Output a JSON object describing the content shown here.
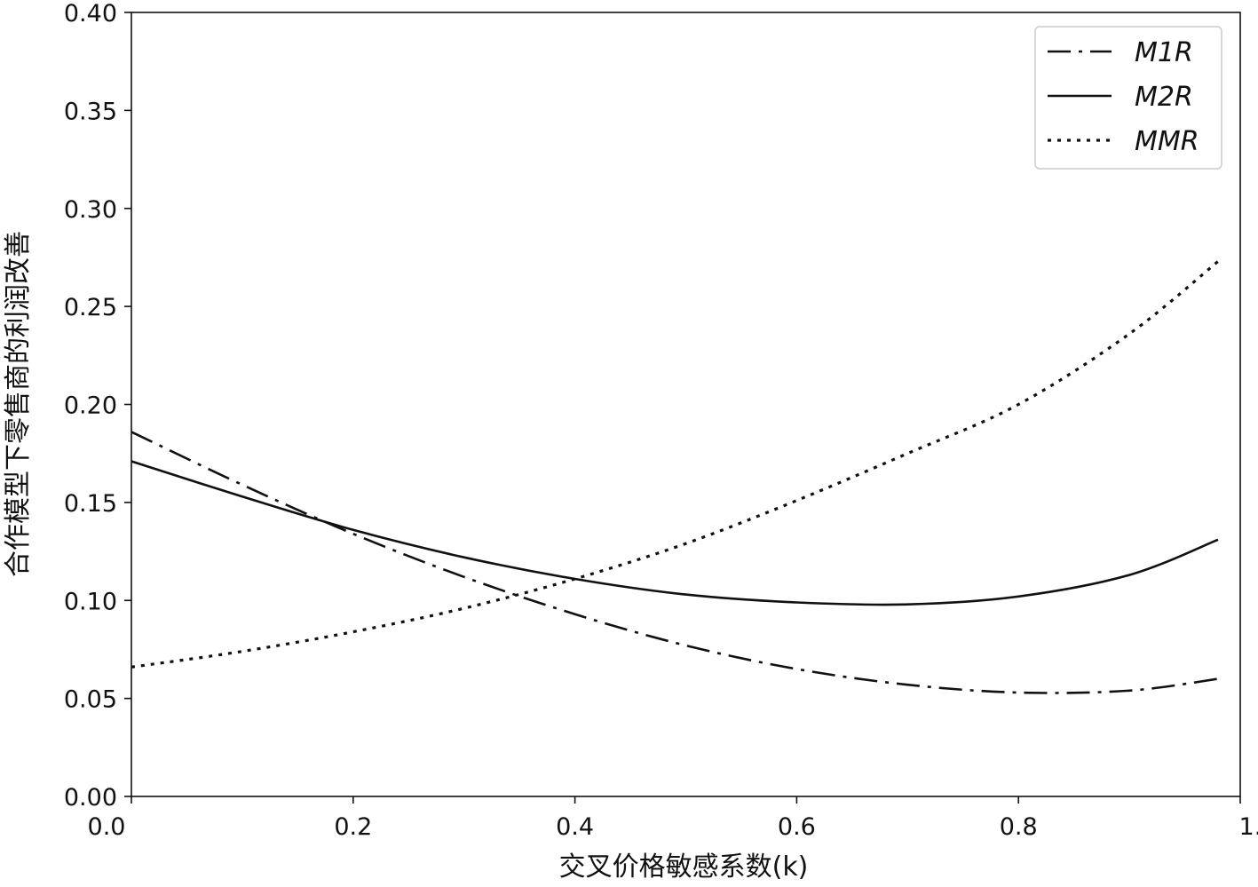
{
  "chart_data": {
    "type": "line",
    "title": "",
    "xlabel": "交叉价格敏感系数(k)",
    "ylabel": "合作模型下零售商的利润改善",
    "xlim": [
      0.0,
      1.0
    ],
    "ylim": [
      0.0,
      0.4
    ],
    "xticks": [
      0.0,
      0.2,
      0.4,
      0.6,
      0.8,
      1.0
    ],
    "xtick_labels": [
      "0.0",
      "0.2",
      "0.4",
      "0.6",
      "0.8",
      "1.0"
    ],
    "yticks": [
      0.0,
      0.05,
      0.1,
      0.15,
      0.2,
      0.25,
      0.3,
      0.35,
      0.4
    ],
    "ytick_labels": [
      "0.00",
      "0.05",
      "0.10",
      "0.15",
      "0.20",
      "0.25",
      "0.30",
      "0.35",
      "0.40"
    ],
    "grid": false,
    "legend": {
      "position": "top-right"
    },
    "x": [
      0.0,
      0.1,
      0.2,
      0.3,
      0.4,
      0.5,
      0.6,
      0.7,
      0.8,
      0.9,
      0.98
    ],
    "series": [
      {
        "name": "M1R",
        "style": "dashdot",
        "color": "#111111",
        "values": [
          0.186,
          0.159,
          0.134,
          0.112,
          0.093,
          0.077,
          0.065,
          0.057,
          0.053,
          0.054,
          0.06
        ]
      },
      {
        "name": "M2R",
        "style": "solid",
        "color": "#111111",
        "values": [
          0.171,
          0.153,
          0.136,
          0.122,
          0.111,
          0.103,
          0.099,
          0.098,
          0.102,
          0.113,
          0.131
        ]
      },
      {
        "name": "MMR",
        "style": "dotted",
        "color": "#111111",
        "values": [
          0.066,
          0.074,
          0.084,
          0.096,
          0.111,
          0.129,
          0.151,
          0.175,
          0.2,
          0.236,
          0.273
        ]
      }
    ]
  }
}
